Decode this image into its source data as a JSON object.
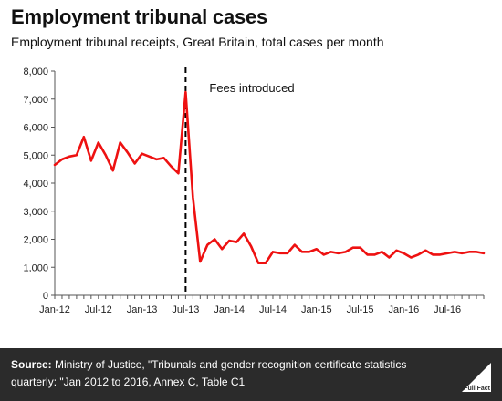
{
  "header": {
    "title": "Employment tribunal cases",
    "subtitle": "Employment tribunal receipts, Great Britain, total cases per month"
  },
  "footer": {
    "source_label": "Source:",
    "source_text": " Ministry of Justice, \"Tribunals and gender recognition certificate statistics quarterly: \"Jan 2012 to  2016, Annex C, Table C1",
    "logo_text": "Full Fact"
  },
  "colors": {
    "series": "#ee1111",
    "axis": "#555555",
    "annotation_line": "#000000",
    "footer_bg": "#2b2b2b"
  },
  "chart_data": {
    "type": "line",
    "title": "Employment tribunal cases",
    "subtitle": "Employment tribunal receipts, Great Britain, total cases per month",
    "xlabel": "",
    "ylabel": "",
    "ylim": [
      0,
      8000
    ],
    "yticks": [
      0,
      1000,
      2000,
      3000,
      4000,
      5000,
      6000,
      7000,
      8000
    ],
    "ytick_labels": [
      "0",
      "1,000",
      "2,000",
      "3,000",
      "4,000",
      "5,000",
      "6,000",
      "7,000",
      "8,000"
    ],
    "xtick_labels": [
      "Jan-12",
      "Jul-12",
      "Jan-13",
      "Jul-13",
      "Jan-14",
      "Jul-14",
      "Jan-15",
      "Jul-15",
      "Jan-16",
      "Jul-16"
    ],
    "grid": false,
    "legend": "none",
    "x": [
      "Jan-12",
      "Feb-12",
      "Mar-12",
      "Apr-12",
      "May-12",
      "Jun-12",
      "Jul-12",
      "Aug-12",
      "Sep-12",
      "Oct-12",
      "Nov-12",
      "Dec-12",
      "Jan-13",
      "Feb-13",
      "Mar-13",
      "Apr-13",
      "May-13",
      "Jun-13",
      "Jul-13",
      "Aug-13",
      "Sep-13",
      "Oct-13",
      "Nov-13",
      "Dec-13",
      "Jan-14",
      "Feb-14",
      "Mar-14",
      "Apr-14",
      "May-14",
      "Jun-14",
      "Jul-14",
      "Aug-14",
      "Sep-14",
      "Oct-14",
      "Nov-14",
      "Dec-14",
      "Jan-15",
      "Feb-15",
      "Mar-15",
      "Apr-15",
      "May-15",
      "Jun-15",
      "Jul-15",
      "Aug-15",
      "Sep-15",
      "Oct-15",
      "Nov-15",
      "Dec-15",
      "Jan-16",
      "Feb-16",
      "Mar-16",
      "Apr-16",
      "May-16",
      "Jun-16",
      "Jul-16",
      "Aug-16",
      "Sep-16",
      "Oct-16",
      "Nov-16",
      "Dec-16"
    ],
    "series": [
      {
        "values": [
          4650,
          4850,
          4950,
          5000,
          5650,
          4800,
          5450,
          5000,
          4450,
          5450,
          5100,
          4700,
          5050,
          4950,
          4850,
          4900,
          4600,
          4350,
          7250,
          3500,
          1200,
          1800,
          2000,
          1650,
          1950,
          1900,
          2200,
          1750,
          1150,
          1150,
          1550,
          1500,
          1500,
          1800,
          1550,
          1550,
          1650,
          1450,
          1550,
          1500,
          1550,
          1700,
          1700,
          1450,
          1450,
          1550,
          1350,
          1600,
          1500,
          1350,
          1450,
          1600,
          1450,
          1450,
          1500,
          1550,
          1500,
          1550,
          1550,
          1500
        ]
      }
    ],
    "annotations": [
      {
        "x": "Jul-13",
        "type": "vline",
        "label": "Fees introduced"
      }
    ]
  }
}
